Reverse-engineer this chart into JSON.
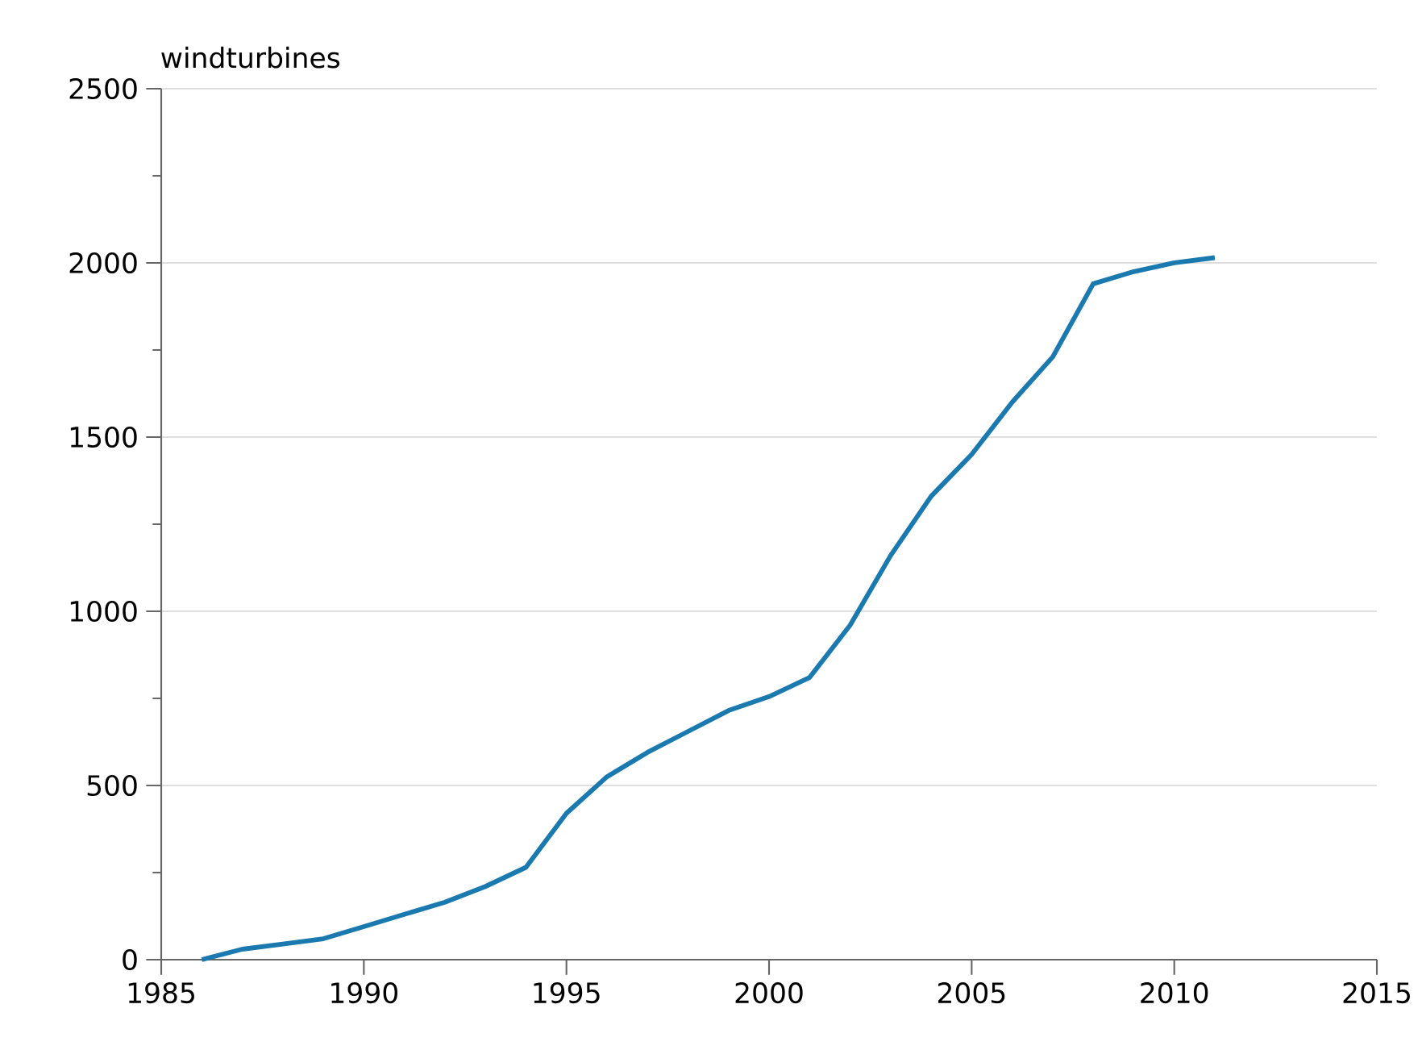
{
  "chart_data": {
    "type": "line",
    "ylabel": "windturbines",
    "x": [
      1986,
      1987,
      1988,
      1989,
      1990,
      1991,
      1992,
      1993,
      1994,
      1995,
      1996,
      1997,
      1998,
      1999,
      2000,
      2001,
      2002,
      2003,
      2004,
      2005,
      2006,
      2007,
      2008,
      2009,
      2010,
      2011
    ],
    "series": [
      {
        "color": "#1a7ab0",
        "values": [
          0,
          30,
          45,
          60,
          95,
          130,
          165,
          210,
          265,
          420,
          525,
          595,
          655,
          715,
          755,
          810,
          960,
          1160,
          1330,
          1450,
          1600,
          1730,
          1940,
          1975,
          2000,
          2015
        ]
      }
    ],
    "xlim": [
      1985,
      2015
    ],
    "xticks": [
      1985,
      1990,
      1995,
      2000,
      2005,
      2010,
      2015
    ],
    "ylim": [
      0,
      2500
    ],
    "yticks": [
      0,
      500,
      1000,
      1500,
      2000,
      2500
    ],
    "grid": "y",
    "marker": "none",
    "line_style": "solid"
  }
}
